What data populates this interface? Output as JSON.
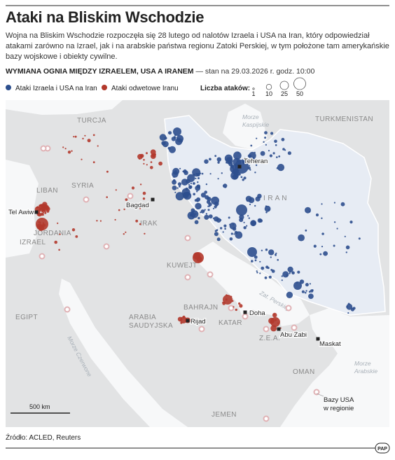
{
  "header": {
    "title": "Ataki na Bliskim Wschodzie",
    "subtitle": "Wojna na Bliskim Wschodzie rozpoczęła się 28 lutego od nalotów Izraela i USA na Iran, który odpowiedział atakami zarówno na Izrael, jak i na arabskie państwa regionu Zatoki Perskiej, w tym położone tam amerykańskie bazy wojskowe i obiekty cywilne.",
    "section_title": "WYMIANA OGNIA MIĘDZY IZRAELEM, USA A IRANEM",
    "timestamp": "— stan na 29.03.2026 r. godz. 10:00"
  },
  "legend": {
    "items": [
      {
        "label": "Ataki Izraela i USA na Iran",
        "color": "#2d4f8e"
      },
      {
        "label": "Ataki odwetowe Iranu",
        "color": "#b3392c"
      }
    ],
    "size_title": "Liczba ataków:",
    "sizes": [
      1,
      10,
      25,
      50
    ]
  },
  "map": {
    "countries": [
      "TURCJA",
      "SYRIA",
      "LIBAN",
      "IRAK",
      "JORDANIA",
      "IZRAEL",
      "KUWEJT",
      "BAHRAJN",
      "KATAR",
      "Z.E.A.",
      "OMAN",
      "JEMEN",
      "EGIPT",
      "I R A N",
      "TURKMENISTAN",
      [
        "ARABIA",
        "SAUDYJSKA"
      ]
    ],
    "seas": [
      [
        "Morze",
        "Kaspijskie"
      ],
      [
        "Morze Czerwone"
      ],
      [
        "Zat. Perskiej"
      ],
      [
        "Morze",
        "Arabskie"
      ]
    ],
    "cities": [
      "Teheran",
      "Bagdad",
      "Tel Awiw",
      "Rijad",
      "Doha",
      "Abu Zabi",
      "Maskat"
    ],
    "annotation": [
      "Bazy USA",
      "w regionie"
    ],
    "scale_label": "500 km"
  },
  "footer": {
    "source": "Źródło: ACLED, Reuters",
    "logo": "PAP"
  }
}
